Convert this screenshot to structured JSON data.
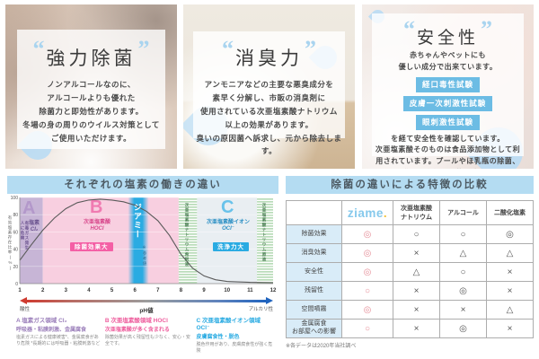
{
  "cards": [
    {
      "quote_open": "“",
      "quote_close": "”",
      "title": "強力除菌",
      "body": "ノンアルコールなのに、\nアルコールよりも優れた\n除菌力と即効性があります。\n冬場の身の周りのウイルス対策として\nご使用いただけます。"
    },
    {
      "quote_open": "“",
      "quote_close": "”",
      "title": "消臭力",
      "body": "アンモニアなどの主要な悪臭成分を\n素早く分解し、市販の消臭剤に\n使用されている次亜塩素酸ナトリウム\n以上の効果があります。\n臭いの原因菌へ訴求し、元から除去します。"
    },
    {
      "quote_open": "“",
      "quote_close": "”",
      "title": "安全性",
      "intro": "赤ちゃんやペットにも\n優しい成分で出来ています。",
      "badges": [
        "経口毒性試験",
        "皮膚一次刺激性試験",
        "眼刺激性試験"
      ],
      "body": "を経て安全性を確認しています。\n次亜塩素酸そのものは食品添加物として利\n用されています。プールやほ乳瓶の除菌、\n水道水の浄化、野菜の洗浄など\n幅広い分野で活用されています。"
    }
  ],
  "chart_panel": {
    "title": "それぞれの塩素の働きの違い",
    "y_label": "有効塩素存在比率(%)",
    "x_label": "pH値",
    "x_left": "酸性",
    "x_right": "アルカリ性",
    "regions": {
      "a_letter": "A",
      "a_name": "塩素",
      "a_formula": "Cl₂",
      "a_note": "有毒ガス発生\n人に危険",
      "b_letter": "B",
      "b_name": "次亜塩素酸",
      "b_formula": "HOCl",
      "b_badge": "除菌効果大",
      "ziame_band": "ジアミー",
      "ziame_note": "※参考値",
      "na_diluted": "次亜塩素酸ナトリウム希釈液",
      "c_letter": "C",
      "c_name": "次亜塩素酸イオン",
      "c_formula": "OCl⁻",
      "c_badge": "洗浄力大",
      "na_stock": "次亜塩素酸ナトリウム原液"
    },
    "legend": [
      {
        "head": "A 塩素ガス領域 Cl₂",
        "sub": "呼吸器・粘膜刺激、金属腐食",
        "text": "塩素ガスによる健康被害*、金属腐食があり危険 *長期的には呼吸器・粘膜刺激など"
      },
      {
        "head": "B 次亜塩素酸領域 HOCl",
        "sub": "次亜塩素酸が多く含まれる",
        "text": "除菌効果が高く残留性も少なく、安心・安全です。"
      },
      {
        "head": "C 次亜塩素酸イオン領域 OCl⁻",
        "sub": "皮膚腐食性・脱色",
        "text": "脱色作用があり、皮膚腐食性が強く危険"
      }
    ]
  },
  "chart_data": {
    "type": "area",
    "title": "それぞれの塩素の働きの違い",
    "xlabel": "pH値",
    "ylabel": "有効塩素存在比率(%)",
    "xlim": [
      1,
      12
    ],
    "ylim": [
      0,
      100
    ],
    "x": [
      1,
      1.5,
      2,
      2.5,
      3,
      3.5,
      4,
      4.5,
      5,
      5.5,
      6,
      6.5,
      7,
      7.5,
      8,
      8.5,
      9,
      9.5,
      10,
      11,
      12
    ],
    "y": [
      27,
      45,
      62,
      76,
      87,
      94,
      97,
      98,
      97,
      95,
      91,
      84,
      73,
      56,
      34,
      18,
      9,
      4.5,
      2.5,
      1.5,
      1
    ],
    "xticks": [
      1,
      2,
      3,
      4,
      5,
      6,
      7,
      8,
      9,
      10,
      11,
      12
    ],
    "yticks": [
      0,
      20,
      40,
      60,
      80,
      100
    ],
    "regions": [
      {
        "from": 1,
        "to": 2,
        "fill": "#c7b5d6",
        "label": "塩素ガス領域"
      },
      {
        "from": 2,
        "to": 7.9,
        "fill": "#f8cfe0",
        "label": "次亜塩素酸領域"
      },
      {
        "from": 7.9,
        "to": 8.7,
        "fill": "stripes",
        "label": "次亜塩素酸ナトリウム希釈液"
      },
      {
        "from": 8.7,
        "to": 11.3,
        "fill": "#e9eef2",
        "label": "次亜塩素酸イオン領域"
      },
      {
        "from": 11.3,
        "to": 12,
        "fill": "stripes",
        "label": "次亜塩素酸ナトリウム原液"
      }
    ],
    "band": {
      "from": 5.7,
      "to": 6.6,
      "color": "#2aabe2",
      "label": "ジアミー"
    }
  },
  "table_panel": {
    "title": "除菌の違いによる特徴の比較",
    "brand": "ziame",
    "brand_dot": ".",
    "columns": [
      "次亜塩素酸\nナトリウム",
      "アルコール",
      "二酸化塩素"
    ],
    "rows": [
      {
        "label": "除菌効果",
        "ziame": "◎",
        "cells": [
          "○",
          "○",
          "◎"
        ]
      },
      {
        "label": "消臭効果",
        "ziame": "◎",
        "cells": [
          "×",
          "△",
          "△"
        ]
      },
      {
        "label": "安全性",
        "ziame": "◎",
        "cells": [
          "△",
          "○",
          "×"
        ]
      },
      {
        "label": "残留性",
        "ziame": "○",
        "cells": [
          "×",
          "◎",
          "×"
        ]
      },
      {
        "label": "空間噴霧",
        "ziame": "◎",
        "cells": [
          "×",
          "×",
          "△"
        ]
      },
      {
        "label": "金属腐食\nお部屋への影響",
        "ziame": "○",
        "cells": [
          "×",
          "◎",
          "×"
        ]
      }
    ],
    "footnote": "※各データは2020年当社調べ"
  }
}
